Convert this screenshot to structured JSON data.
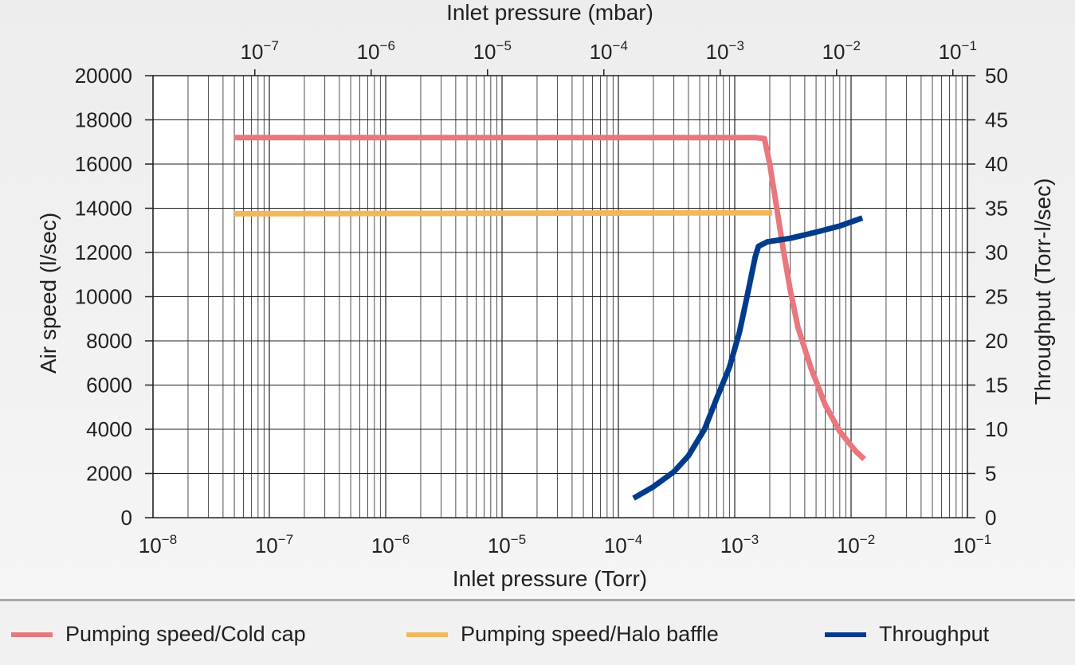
{
  "chart_data": {
    "type": "line",
    "x_axis_bottom": {
      "label": "Inlet pressure (Torr)",
      "scale": "log",
      "range": [
        1e-08,
        0.1
      ],
      "tick_exponents": [
        -8,
        -7,
        -6,
        -5,
        -4,
        -3,
        -2,
        -1
      ]
    },
    "x_axis_top": {
      "label": "Inlet pressure (mbar)",
      "scale": "log",
      "tick_exponents": [
        -7,
        -6,
        -5,
        -4,
        -3,
        -2,
        -1
      ],
      "mbar_per_torr": 1.33322
    },
    "y_axis_left": {
      "label": "Air speed (l/sec)",
      "range": [
        0,
        20000
      ],
      "ticks": [
        0,
        2000,
        4000,
        6000,
        8000,
        10000,
        12000,
        14000,
        16000,
        18000,
        20000
      ]
    },
    "y_axis_right": {
      "label": "Throughput (Torr-l/sec)",
      "range": [
        0,
        50
      ],
      "ticks": [
        0,
        5,
        10,
        15,
        20,
        25,
        30,
        35,
        40,
        45,
        50
      ]
    },
    "grid": true,
    "legend_position": "bottom",
    "series": [
      {
        "name": "Pumping speed/Cold cap",
        "color": "#e8777e",
        "axis": "left",
        "points": [
          [
            5e-08,
            17200
          ],
          [
            0.0015,
            17200
          ],
          [
            0.0018,
            17150
          ],
          [
            0.002,
            16000
          ],
          [
            0.0023,
            14000
          ],
          [
            0.0026,
            12200
          ],
          [
            0.003,
            10300
          ],
          [
            0.0035,
            8600
          ],
          [
            0.0045,
            6800
          ],
          [
            0.006,
            5100
          ],
          [
            0.008,
            3900
          ],
          [
            0.011,
            3000
          ],
          [
            0.013,
            2650
          ]
        ]
      },
      {
        "name": "Pumping speed/Halo baffle",
        "color": "#f1b75a",
        "axis": "left",
        "points": [
          [
            5e-08,
            13750
          ],
          [
            0.0021,
            13800
          ]
        ]
      },
      {
        "name": "Throughput",
        "color": "#003b8c",
        "axis": "right",
        "points": [
          [
            0.000135,
            2.2
          ],
          [
            0.0002,
            3.5
          ],
          [
            0.0003,
            5.2
          ],
          [
            0.0004,
            7.0
          ],
          [
            0.00055,
            10.0
          ],
          [
            0.0007,
            13.5
          ],
          [
            0.0009,
            17.0
          ],
          [
            0.0011,
            21.0
          ],
          [
            0.0013,
            25.5
          ],
          [
            0.0015,
            29.5
          ],
          [
            0.0016,
            30.7
          ],
          [
            0.0019,
            31.2
          ],
          [
            0.003,
            31.6
          ],
          [
            0.005,
            32.3
          ],
          [
            0.008,
            33.0
          ],
          [
            0.0125,
            33.9
          ]
        ]
      }
    ]
  }
}
